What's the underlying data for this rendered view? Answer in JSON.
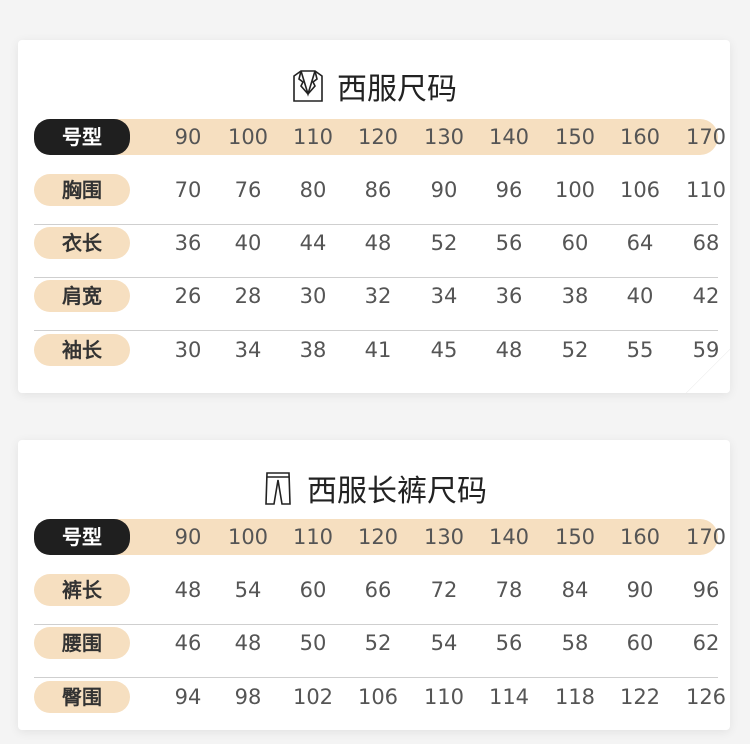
{
  "suit": {
    "title": "西服尺码",
    "icon": "suit-jacket-icon",
    "header": {
      "label": "号型",
      "values": [
        "90",
        "100",
        "110",
        "120",
        "130",
        "140",
        "150",
        "160",
        "170"
      ]
    },
    "rows": [
      {
        "label": "胸围",
        "values": [
          "70",
          "76",
          "80",
          "86",
          "90",
          "96",
          "100",
          "106",
          "110"
        ]
      },
      {
        "label": "衣长",
        "values": [
          "36",
          "40",
          "44",
          "48",
          "52",
          "56",
          "60",
          "64",
          "68"
        ]
      },
      {
        "label": "肩宽",
        "values": [
          "26",
          "28",
          "30",
          "32",
          "34",
          "36",
          "38",
          "40",
          "42"
        ]
      },
      {
        "label": "袖长",
        "values": [
          "30",
          "34",
          "38",
          "41",
          "45",
          "48",
          "52",
          "55",
          "59"
        ]
      }
    ]
  },
  "pants": {
    "title": "西服长裤尺码",
    "icon": "trousers-icon",
    "header": {
      "label": "号型",
      "values": [
        "90",
        "100",
        "110",
        "120",
        "130",
        "140",
        "150",
        "160",
        "170"
      ]
    },
    "rows": [
      {
        "label": "裤长",
        "values": [
          "48",
          "54",
          "60",
          "66",
          "72",
          "78",
          "84",
          "90",
          "96"
        ]
      },
      {
        "label": "腰围",
        "values": [
          "46",
          "48",
          "50",
          "52",
          "54",
          "56",
          "58",
          "60",
          "62"
        ]
      },
      {
        "label": "臀围",
        "values": [
          "94",
          "98",
          "102",
          "106",
          "110",
          "114",
          "118",
          "122",
          "126"
        ]
      }
    ]
  },
  "colors": {
    "accent": "#f6dfc0",
    "dark": "#1f1f1f"
  }
}
